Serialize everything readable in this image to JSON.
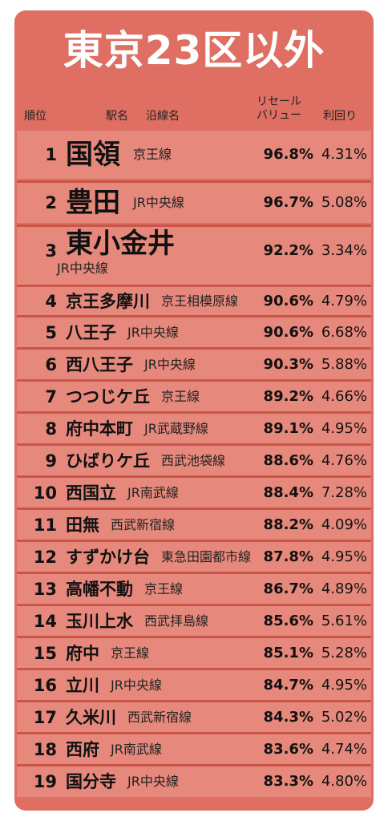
{
  "title": "東京23区以外",
  "headers": {
    "rank": "順位",
    "station": "駅名",
    "line": "沿線名",
    "resale_line1": "リセール",
    "resale_line2": "バリュー",
    "yield": "利回り"
  },
  "rows": [
    {
      "rank": "1",
      "station": "国領",
      "line": "京王線",
      "resale": "96.8%",
      "yield": "4.31%"
    },
    {
      "rank": "2",
      "station": "豊田",
      "line": "JR中央線",
      "resale": "96.7%",
      "yield": "5.08%"
    },
    {
      "rank": "3",
      "station": "東小金井",
      "line": "JR中央線",
      "resale": "92.2%",
      "yield": "3.34%"
    },
    {
      "rank": "4",
      "station": "京王多摩川",
      "line": "京王相模原線",
      "resale": "90.6%",
      "yield": "4.79%"
    },
    {
      "rank": "5",
      "station": "八王子",
      "line": "JR中央線",
      "resale": "90.6%",
      "yield": "6.68%"
    },
    {
      "rank": "6",
      "station": "西八王子",
      "line": "JR中央線",
      "resale": "90.3%",
      "yield": "5.88%"
    },
    {
      "rank": "7",
      "station": "つつじケ丘",
      "line": "京王線",
      "resale": "89.2%",
      "yield": "4.66%"
    },
    {
      "rank": "8",
      "station": "府中本町",
      "line": "JR武蔵野線",
      "resale": "89.1%",
      "yield": "4.95%"
    },
    {
      "rank": "9",
      "station": "ひばりケ丘",
      "line": "西武池袋線",
      "resale": "88.6%",
      "yield": "4.76%"
    },
    {
      "rank": "10",
      "station": "西国立",
      "line": "JR南武線",
      "resale": "88.4%",
      "yield": "7.28%"
    },
    {
      "rank": "11",
      "station": "田無",
      "line": "西武新宿線",
      "resale": "88.2%",
      "yield": "4.09%"
    },
    {
      "rank": "12",
      "station": "すずかけ台",
      "line": "東急田園都市線",
      "resale": "87.8%",
      "yield": "4.95%"
    },
    {
      "rank": "13",
      "station": "高幡不動",
      "line": "京王線",
      "resale": "86.7%",
      "yield": "4.89%"
    },
    {
      "rank": "14",
      "station": "玉川上水",
      "line": "西武拝島線",
      "resale": "85.6%",
      "yield": "5.61%"
    },
    {
      "rank": "15",
      "station": "府中",
      "line": "京王線",
      "resale": "85.1%",
      "yield": "5.28%"
    },
    {
      "rank": "16",
      "station": "立川",
      "line": "JR中央線",
      "resale": "84.7%",
      "yield": "4.95%"
    },
    {
      "rank": "17",
      "station": "久米川",
      "line": "西武新宿線",
      "resale": "84.3%",
      "yield": "5.02%"
    },
    {
      "rank": "18",
      "station": "西府",
      "line": "JR南武線",
      "resale": "83.6%",
      "yield": "4.74%"
    },
    {
      "rank": "19",
      "station": "国分寺",
      "line": "JR中央線",
      "resale": "83.3%",
      "yield": "4.80%"
    }
  ],
  "colors": {
    "card": "#de6f62",
    "row": "#e6897c",
    "separator": "#c85548",
    "title": "#ffffff"
  }
}
